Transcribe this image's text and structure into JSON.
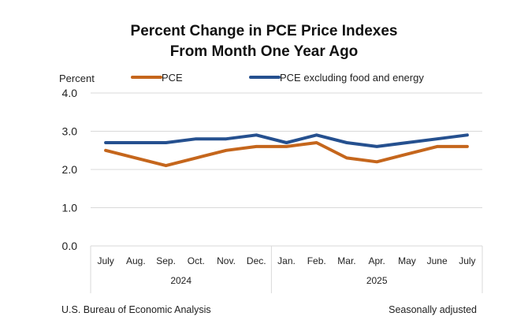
{
  "chart_data": {
    "type": "line",
    "title": [
      "Percent Change in PCE Price Indexes",
      "From Month One Year Ago"
    ],
    "ylabel": "Percent",
    "xlabel": "",
    "ylim": [
      0,
      4
    ],
    "yticks": [
      "0.0",
      "1.0",
      "2.0",
      "3.0",
      "4.0"
    ],
    "grid": true,
    "legend_position": "top",
    "categories": [
      "July",
      "Aug.",
      "Sep.",
      "Oct.",
      "Nov.",
      "Dec.",
      "Jan.",
      "Feb.",
      "Mar.",
      "Apr.",
      "May",
      "June",
      "July"
    ],
    "year_groups": [
      {
        "label": "2024",
        "count": 6
      },
      {
        "label": "2025",
        "count": 7
      }
    ],
    "series": [
      {
        "name": "PCE",
        "color": "#C5661C",
        "values": [
          2.5,
          2.3,
          2.1,
          2.3,
          2.5,
          2.6,
          2.6,
          2.7,
          2.3,
          2.2,
          2.4,
          2.6,
          2.6
        ]
      },
      {
        "name": "PCE excluding food and energy",
        "color": "#25508F",
        "values": [
          2.7,
          2.7,
          2.7,
          2.8,
          2.8,
          2.9,
          2.7,
          2.9,
          2.7,
          2.6,
          2.7,
          2.8,
          2.9
        ]
      }
    ],
    "source": "U.S. Bureau of Economic Analysis",
    "note": "Seasonally adjusted"
  }
}
